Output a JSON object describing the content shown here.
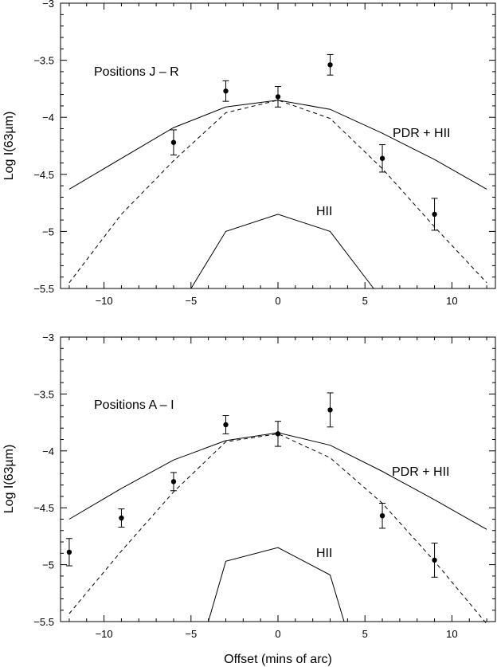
{
  "chart_data": [
    {
      "type": "line",
      "ylabel": "Log I(63µm)",
      "xlabel": "",
      "xlim": [
        -12.5,
        12.5
      ],
      "ylim": [
        -5.5,
        -3
      ],
      "xticks": [
        -10,
        -5,
        0,
        5,
        10
      ],
      "yticks": [
        -3,
        -3.5,
        -4,
        -4.5,
        -5,
        -5.5
      ],
      "xtick_labels": [
        "−10",
        "−5",
        "0",
        "5",
        "10"
      ],
      "ytick_labels": [
        "−3",
        "−3.5",
        "−4",
        "−4.5",
        "−5",
        "−5.5"
      ],
      "grid": false,
      "annotations": [
        "Positions J – R",
        "PDR + HII",
        "HII"
      ],
      "series": [
        {
          "name": "PDR + HII",
          "style": "solid",
          "x": [
            -12,
            -6,
            -3,
            0,
            3,
            6,
            9,
            12
          ],
          "y": [
            -4.63,
            -4.09,
            -3.91,
            -3.85,
            -3.93,
            -4.14,
            -4.37,
            -4.63
          ]
        },
        {
          "name": "",
          "style": "dashed",
          "x": [
            -12,
            -9,
            -6,
            -3,
            0,
            3,
            6,
            9,
            12
          ],
          "y": [
            -5.45,
            -4.85,
            -4.38,
            -3.96,
            -3.85,
            -4.01,
            -4.45,
            -4.96,
            -5.45
          ]
        },
        {
          "name": "HII",
          "style": "solid",
          "x": [
            -5,
            -3,
            0,
            3,
            5.5
          ],
          "y": [
            -5.5,
            -5.0,
            -4.85,
            -5.0,
            -5.5
          ]
        },
        {
          "name": "",
          "style": "points",
          "x": [
            -6,
            -3,
            0,
            3,
            6,
            9
          ],
          "y": [
            -4.22,
            -3.77,
            -3.82,
            -3.54,
            -4.36,
            -4.85
          ],
          "err": [
            0.11,
            0.09,
            0.09,
            0.09,
            0.12,
            0.14
          ]
        }
      ]
    },
    {
      "type": "line",
      "ylabel": "Log I(63µm)",
      "xlabel": "Offset (mins of arc)",
      "xlim": [
        -12.5,
        12.5
      ],
      "ylim": [
        -5.5,
        -3
      ],
      "xticks": [
        -10,
        -5,
        0,
        5,
        10
      ],
      "yticks": [
        -3,
        -3.5,
        -4,
        -4.5,
        -5,
        -5.5
      ],
      "xtick_labels": [
        "−10",
        "−5",
        "0",
        "5",
        "10"
      ],
      "ytick_labels": [
        "−3",
        "−3.5",
        "−4",
        "−4.5",
        "−5",
        "−5.5"
      ],
      "grid": false,
      "annotations": [
        "Positions A – I",
        "PDR + HII",
        "HII"
      ],
      "series": [
        {
          "name": "PDR + HII",
          "style": "solid",
          "x": [
            -12,
            -9,
            -6,
            -3,
            0,
            3,
            6,
            9,
            12
          ],
          "y": [
            -4.6,
            -4.33,
            -4.08,
            -3.91,
            -3.84,
            -3.95,
            -4.18,
            -4.43,
            -4.69
          ]
        },
        {
          "name": "",
          "style": "dashed",
          "x": [
            -12,
            -9,
            -6,
            -3,
            0,
            3,
            6,
            9,
            12
          ],
          "y": [
            -5.43,
            -4.88,
            -4.36,
            -3.92,
            -3.85,
            -4.06,
            -4.46,
            -4.97,
            -5.52
          ]
        },
        {
          "name": "HII",
          "style": "solid",
          "x": [
            -4,
            -3,
            0,
            3,
            3.8
          ],
          "y": [
            -5.5,
            -4.97,
            -4.85,
            -5.09,
            -5.5
          ]
        },
        {
          "name": "",
          "style": "points",
          "x": [
            -12,
            -9,
            -6,
            -3,
            0,
            3,
            6,
            9
          ],
          "y": [
            -4.89,
            -4.59,
            -4.27,
            -3.77,
            -3.85,
            -3.64,
            -4.57,
            -4.96
          ],
          "err": [
            0.12,
            0.08,
            0.08,
            0.08,
            0.11,
            0.15,
            0.11,
            0.15
          ]
        }
      ]
    }
  ]
}
